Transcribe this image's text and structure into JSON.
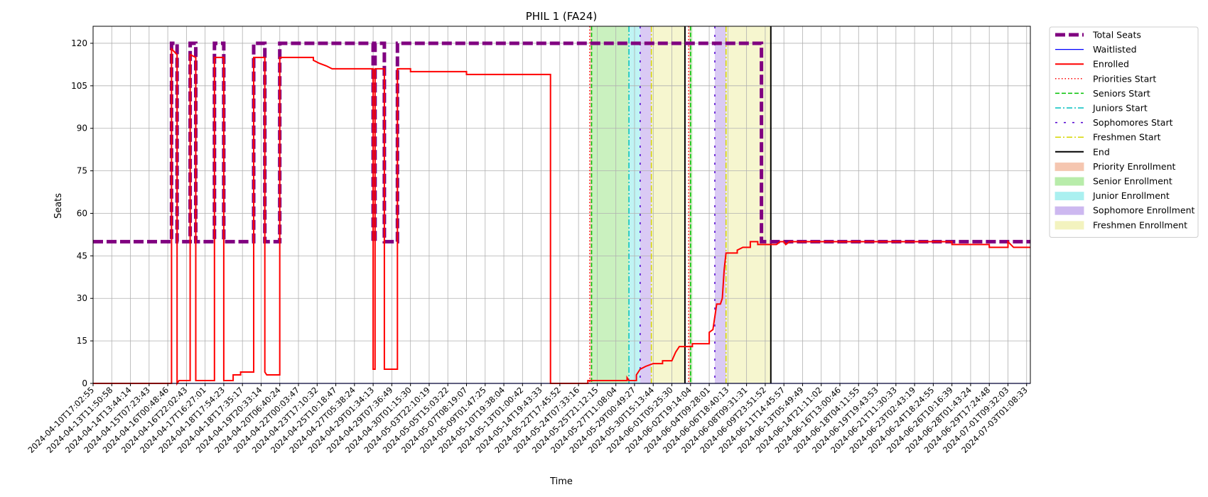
{
  "chart_data": {
    "type": "line",
    "title": "PHIL 1 (FA24)",
    "xlabel": "Time",
    "ylabel": "Seats",
    "ylim": [
      0,
      126
    ],
    "yticks": [
      0,
      15,
      30,
      45,
      60,
      75,
      90,
      105,
      120
    ],
    "grid": true,
    "legend_position": "outside-right",
    "x_ticks": [
      "2024-04-10T17:02:55",
      "2024-04-13T11:50:58",
      "2024-04-14T13:44:14",
      "2024-04-15T07:23:43",
      "2024-04-16T00:48:46",
      "2024-04-16T22:02:43",
      "2024-04-17T16:27:01",
      "2024-04-18T17:54:23",
      "2024-04-18T17:35:17",
      "2024-04-19T20:33:14",
      "2024-04-20T06:40:24",
      "2024-04-22T00:03:47",
      "2024-04-23T17:10:32",
      "2024-04-25T10:18:47",
      "2024-04-27T05:38:24",
      "2024-04-29T01:34:13",
      "2024-04-29T07:36:49",
      "2024-04-30T01:15:30",
      "2024-05-03T22:10:19",
      "2024-05-05T15:03:22",
      "2024-05-07T08:19:07",
      "2024-05-09T01:47:25",
      "2024-05-10T19:38:04",
      "2024-05-13T01:00:42",
      "2024-05-14T19:43:33",
      "2024-05-22T17:45:52",
      "2024-05-24T07:33:16",
      "2024-05-25T21:12:15",
      "2024-05-27T11:08:04",
      "2024-05-29T00:49:27",
      "2024-05-30T15:13:44",
      "2024-06-01T05:25:30",
      "2024-06-02T19:14:04",
      "2024-06-04T09:28:01",
      "2024-06-06T18:40:13",
      "2024-06-08T09:31:31",
      "2024-06-09T23:51:52",
      "2024-06-11T14:45:57",
      "2024-06-13T05:49:49",
      "2024-06-14T21:11:02",
      "2024-06-16T13:00:46",
      "2024-06-18T04:11:55",
      "2024-06-19T19:43:53",
      "2024-06-21T11:30:33",
      "2024-06-23T02:43:19",
      "2024-06-24T18:24:55",
      "2024-06-26T10:16:39",
      "2024-06-28T01:43:24",
      "2024-06-29T17:24:48",
      "2024-07-01T09:32:03",
      "2024-07-03T01:08:33"
    ],
    "x_range": [
      0,
      50.2
    ],
    "series": [
      {
        "name": "Total Seats",
        "color": "#800080",
        "style": "dashed-thick",
        "steps": [
          [
            0,
            50
          ],
          [
            4.2,
            50
          ],
          [
            4.2,
            120
          ],
          [
            4.5,
            120
          ],
          [
            4.5,
            50
          ],
          [
            5.2,
            50
          ],
          [
            5.2,
            120
          ],
          [
            5.5,
            120
          ],
          [
            5.5,
            50
          ],
          [
            6.5,
            50
          ],
          [
            6.5,
            120
          ],
          [
            7.0,
            120
          ],
          [
            7.0,
            50
          ],
          [
            8.6,
            50
          ],
          [
            8.6,
            120
          ],
          [
            9.2,
            120
          ],
          [
            9.2,
            50
          ],
          [
            10,
            50
          ],
          [
            10,
            120
          ],
          [
            15,
            120
          ],
          [
            15,
            50
          ],
          [
            15.1,
            50
          ],
          [
            15.1,
            120
          ],
          [
            15.6,
            120
          ],
          [
            15.6,
            50
          ],
          [
            16.3,
            50
          ],
          [
            16.3,
            120
          ],
          [
            35.8,
            120
          ],
          [
            35.8,
            50
          ],
          [
            50.2,
            50
          ]
        ]
      },
      {
        "name": "Waitlisted",
        "color": "#0000ff",
        "style": "solid-thin",
        "steps": [
          [
            0,
            0
          ],
          [
            50.2,
            0
          ]
        ]
      },
      {
        "name": "Enrolled",
        "color": "#ff0000",
        "style": "solid",
        "steps": [
          [
            0,
            0
          ],
          [
            4.2,
            0
          ],
          [
            4.2,
            118
          ],
          [
            4.5,
            116
          ],
          [
            4.5,
            0
          ],
          [
            4.6,
            1
          ],
          [
            5.2,
            1
          ],
          [
            5.2,
            116
          ],
          [
            5.5,
            115
          ],
          [
            5.5,
            1
          ],
          [
            6.5,
            1
          ],
          [
            6.5,
            115
          ],
          [
            7.0,
            115
          ],
          [
            7.0,
            1
          ],
          [
            7.5,
            1
          ],
          [
            7.5,
            3
          ],
          [
            7.9,
            3
          ],
          [
            7.9,
            4
          ],
          [
            8.6,
            4
          ],
          [
            8.6,
            115
          ],
          [
            9.2,
            115
          ],
          [
            9.2,
            4
          ],
          [
            9.3,
            3
          ],
          [
            10,
            3
          ],
          [
            10,
            115
          ],
          [
            11.8,
            115
          ],
          [
            11.8,
            114
          ],
          [
            12.1,
            113
          ],
          [
            12.5,
            112
          ],
          [
            12.8,
            111
          ],
          [
            15,
            111
          ],
          [
            15,
            5
          ],
          [
            15.1,
            5
          ],
          [
            15.1,
            111
          ],
          [
            15.6,
            111
          ],
          [
            15.6,
            5
          ],
          [
            16.3,
            5
          ],
          [
            16.3,
            111
          ],
          [
            17,
            111
          ],
          [
            17,
            110
          ],
          [
            20,
            110
          ],
          [
            20,
            109
          ],
          [
            24.5,
            109
          ],
          [
            24.5,
            0
          ],
          [
            26.5,
            0
          ],
          [
            26.5,
            1
          ],
          [
            28.6,
            1
          ],
          [
            28.6,
            2
          ],
          [
            28.7,
            1
          ],
          [
            29.1,
            1
          ],
          [
            29.1,
            3
          ],
          [
            29.3,
            5
          ],
          [
            29.6,
            6
          ],
          [
            30,
            7
          ],
          [
            30.5,
            7
          ],
          [
            30.5,
            8
          ],
          [
            31,
            8
          ],
          [
            31.2,
            11
          ],
          [
            31.4,
            13
          ],
          [
            32.1,
            13
          ],
          [
            32.1,
            14
          ],
          [
            33.0,
            14
          ],
          [
            33.0,
            18
          ],
          [
            33.2,
            19
          ],
          [
            33.4,
            28
          ],
          [
            33.6,
            28
          ],
          [
            33.7,
            30
          ],
          [
            33.8,
            40
          ],
          [
            33.9,
            46
          ],
          [
            34.5,
            46
          ],
          [
            34.5,
            47
          ],
          [
            34.8,
            48
          ],
          [
            35.2,
            48
          ],
          [
            35.2,
            50
          ],
          [
            35.6,
            50
          ],
          [
            35.6,
            49
          ],
          [
            36.6,
            49
          ],
          [
            36.8,
            50
          ],
          [
            37,
            50
          ],
          [
            37.1,
            49
          ],
          [
            37.3,
            50
          ],
          [
            46,
            50
          ],
          [
            46,
            49
          ],
          [
            48,
            49
          ],
          [
            48,
            48
          ],
          [
            49,
            48
          ],
          [
            49,
            50
          ],
          [
            49.3,
            48
          ],
          [
            50.2,
            48
          ]
        ]
      }
    ],
    "vertical_lines": [
      {
        "name": "Priorities Start",
        "color": "#ff0000",
        "style": "dotted",
        "x": 26.6
      },
      {
        "name": "Seniors Start",
        "color": "#00c000",
        "style": "dashed",
        "x": 26.7
      },
      {
        "name": "Juniors Start",
        "color": "#00bfbf",
        "style": "dashdot",
        "x": 28.7
      },
      {
        "name": "Sophomores Start",
        "color": "#5000d0",
        "style": "loosedash",
        "x": 29.3
      },
      {
        "name": "Freshmen Start",
        "color": "#d6d600",
        "style": "dashdot",
        "x": 29.9
      },
      {
        "name": "End",
        "color": "#000000",
        "style": "solid",
        "x": 31.7
      },
      {
        "name": "Priorities Start",
        "color": "#ff0000",
        "style": "dotted",
        "x": 31.9
      },
      {
        "name": "Seniors Start",
        "color": "#00c000",
        "style": "dashed",
        "x": 32.0
      },
      {
        "name": "Sophomores Start",
        "color": "#5000d0",
        "style": "loosedash",
        "x": 33.3
      },
      {
        "name": "Freshmen Start",
        "color": "#d6d600",
        "style": "dashdot",
        "x": 33.9
      },
      {
        "name": "End",
        "color": "#000000",
        "style": "solid",
        "x": 36.3
      }
    ],
    "shaded_regions": [
      {
        "name": "Priority Enrollment",
        "color": "#f5c6b0",
        "from": 26.6,
        "to": 26.7
      },
      {
        "name": "Senior Enrollment",
        "color": "#b8ecaa",
        "from": 26.7,
        "to": 28.7
      },
      {
        "name": "Junior Enrollment",
        "color": "#aaf0f0",
        "from": 28.7,
        "to": 29.3
      },
      {
        "name": "Sophomore Enrollment",
        "color": "#cdb8f0",
        "from": 29.3,
        "to": 29.9
      },
      {
        "name": "Freshmen Enrollment",
        "color": "#f3f3bf",
        "from": 29.9,
        "to": 31.7
      },
      {
        "name": "Priority Enrollment",
        "color": "#f5c6b0",
        "from": 31.9,
        "to": 32.0
      },
      {
        "name": "Senior Enrollment",
        "color": "#b8ecaa",
        "from": 32.0,
        "to": 32.1
      },
      {
        "name": "Sophomore Enrollment",
        "color": "#cdb8f0",
        "from": 33.3,
        "to": 33.9
      },
      {
        "name": "Freshmen Enrollment",
        "color": "#f3f3bf",
        "from": 33.9,
        "to": 36.3
      }
    ],
    "legend": [
      {
        "label": "Total Seats",
        "kind": "line",
        "color": "#800080",
        "style": "dashed-thick"
      },
      {
        "label": "Waitlisted",
        "kind": "line",
        "color": "#0000ff",
        "style": "solid-thin"
      },
      {
        "label": "Enrolled",
        "kind": "line",
        "color": "#ff0000",
        "style": "solid"
      },
      {
        "label": "Priorities Start",
        "kind": "line",
        "color": "#ff0000",
        "style": "dotted"
      },
      {
        "label": "Seniors Start",
        "kind": "line",
        "color": "#00c000",
        "style": "dashed"
      },
      {
        "label": "Juniors Start",
        "kind": "line",
        "color": "#00bfbf",
        "style": "dashdot"
      },
      {
        "label": "Sophomores Start",
        "kind": "line",
        "color": "#5000d0",
        "style": "loosedash"
      },
      {
        "label": "Freshmen Start",
        "kind": "line",
        "color": "#d6d600",
        "style": "dashdot"
      },
      {
        "label": "End",
        "kind": "line",
        "color": "#000000",
        "style": "solid"
      },
      {
        "label": "Priority Enrollment",
        "kind": "patch",
        "color": "#f5c6b0"
      },
      {
        "label": "Senior Enrollment",
        "kind": "patch",
        "color": "#b8ecaa"
      },
      {
        "label": "Junior Enrollment",
        "kind": "patch",
        "color": "#aaf0f0"
      },
      {
        "label": "Sophomore Enrollment",
        "kind": "patch",
        "color": "#cdb8f0"
      },
      {
        "label": "Freshmen Enrollment",
        "kind": "patch",
        "color": "#f3f3bf"
      }
    ]
  }
}
